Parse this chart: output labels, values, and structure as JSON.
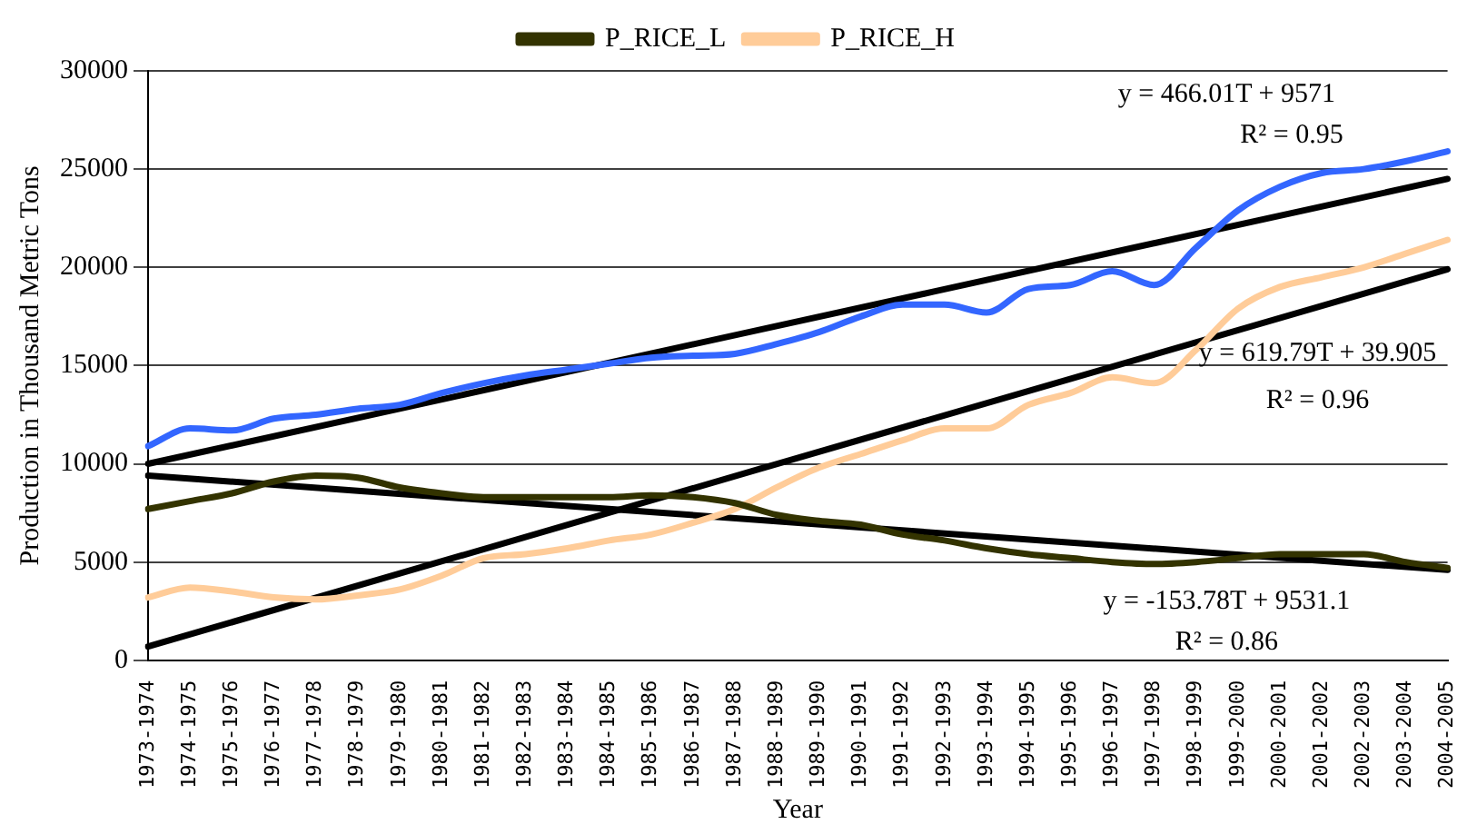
{
  "chart_data": {
    "type": "line",
    "xlabel": "Year",
    "ylabel": "Production in Thousand Metric Tons",
    "categories": [
      "1973-1974",
      "1974-1975",
      "1975-1976",
      "1976-1977",
      "1977-1978",
      "1978-1979",
      "1979-1980",
      "1980-1981",
      "1981-1982",
      "1982-1983",
      "1983-1984",
      "1984-1985",
      "1985-1986",
      "1986-1987",
      "1987-1988",
      "1988-1989",
      "1989-1990",
      "1990-1991",
      "1991-1992",
      "1992-1993",
      "1993-1994",
      "1994-1995",
      "1995-1996",
      "1996-1997",
      "1997-1998",
      "1998-1999",
      "1999-2000",
      "2000-2001",
      "2001-2002",
      "2002-2003",
      "2003-2004",
      "2004-2005"
    ],
    "series": [
      {
        "color": "#3366ff",
        "values": [
          10900,
          11800,
          11700,
          12300,
          12500,
          12800,
          13000,
          13600,
          14100,
          14500,
          14800,
          15100,
          15400,
          15500,
          15600,
          16100,
          16700,
          17500,
          18100,
          18100,
          17700,
          18900,
          19100,
          19800,
          19100,
          21000,
          22900,
          24100,
          24800,
          25000,
          25400,
          25900
        ]
      },
      {
        "name": "P_RICE_L",
        "color": "#333300",
        "values": [
          7700,
          8100,
          8500,
          9100,
          9400,
          9300,
          8800,
          8500,
          8300,
          8300,
          8300,
          8300,
          8400,
          8300,
          8000,
          7400,
          7100,
          6900,
          6400,
          6100,
          5700,
          5400,
          5200,
          5000,
          4900,
          5000,
          5200,
          5400,
          5400,
          5400,
          5000,
          4700
        ]
      },
      {
        "name": "P_RICE_H",
        "color": "#ffcc99",
        "values": [
          3200,
          3700,
          3500,
          3200,
          3100,
          3300,
          3600,
          4300,
          5200,
          5400,
          5700,
          6100,
          6400,
          7000,
          7700,
          8800,
          9800,
          10500,
          11200,
          11800,
          11800,
          13000,
          13600,
          14400,
          14100,
          15800,
          17900,
          19000,
          19500,
          20000,
          20700,
          21400
        ]
      },
      {
        "type": "line",
        "color": "#000000",
        "x": [
          "1973-1974",
          "2004-2005"
        ],
        "values": [
          10000,
          24500
        ]
      },
      {
        "type": "line",
        "color": "#000000",
        "x": [
          "1973-1974",
          "2004-2005"
        ],
        "values": [
          700,
          19900
        ]
      },
      {
        "type": "line",
        "color": "#000000",
        "x": [
          "1973-1974",
          "2004-2005"
        ],
        "values": [
          9400,
          4600
        ]
      }
    ],
    "ylim": [
      0,
      30000
    ],
    "yticks": [
      0,
      5000,
      10000,
      15000,
      20000,
      25000,
      30000
    ],
    "grid": "y",
    "legend": "top",
    "marker": "none",
    "line_style": "solid",
    "annotations": [
      "y = 466.01T + 9571",
      "R² = 0.95",
      "y = 619.79T + 39.905",
      "R² = 0.96",
      "y = -153.78T + 9531.1",
      "R² = 0.86"
    ]
  }
}
